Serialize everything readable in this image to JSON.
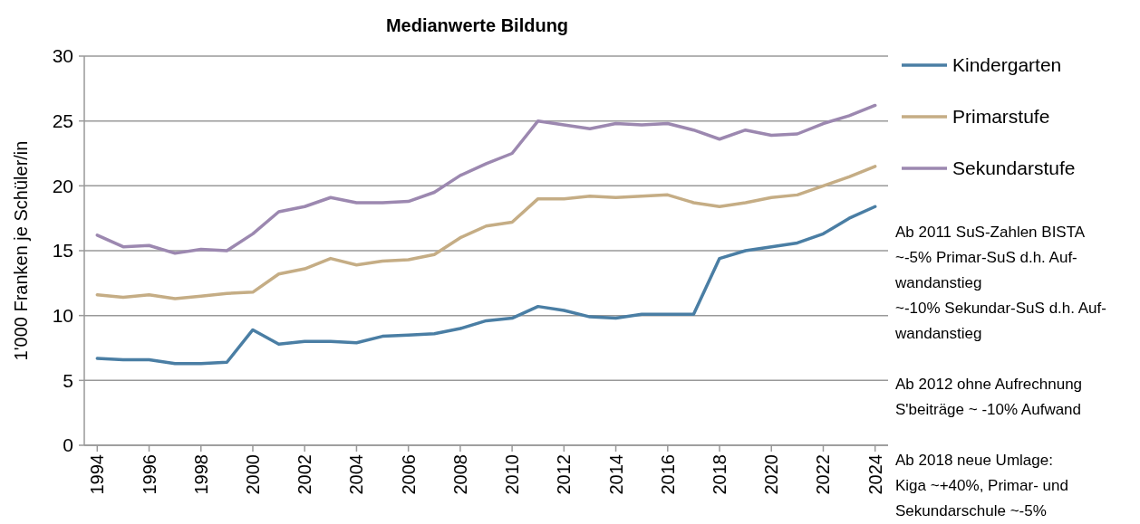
{
  "chart_data": {
    "type": "line",
    "title": "Medianwerte Bildung",
    "ylabel": "1'000 Franken je Schüler/in",
    "x": [
      1994,
      1995,
      1996,
      1997,
      1998,
      1999,
      2000,
      2001,
      2002,
      2003,
      2004,
      2005,
      2006,
      2007,
      2008,
      2009,
      2010,
      2011,
      2012,
      2013,
      2014,
      2015,
      2016,
      2017,
      2018,
      2019,
      2020,
      2021,
      2022,
      2023,
      2024
    ],
    "series": [
      {
        "name": "Kindergarten",
        "color": "#4a7ea4",
        "values": [
          6.7,
          6.6,
          6.6,
          6.3,
          6.3,
          6.4,
          8.9,
          7.8,
          8.0,
          8.0,
          7.9,
          8.4,
          8.5,
          8.6,
          9.0,
          9.6,
          9.8,
          10.7,
          10.4,
          9.9,
          9.8,
          10.1,
          10.1,
          10.1,
          14.4,
          15.0,
          15.3,
          15.6,
          16.3,
          17.5,
          18.4
        ]
      },
      {
        "name": "Primarstufe",
        "color": "#c5ad85",
        "values": [
          11.6,
          11.4,
          11.6,
          11.3,
          11.5,
          11.7,
          11.8,
          13.2,
          13.6,
          14.4,
          13.9,
          14.2,
          14.3,
          14.7,
          16.0,
          16.9,
          17.2,
          19.0,
          19.0,
          19.2,
          19.1,
          19.2,
          19.3,
          18.7,
          18.4,
          18.7,
          19.1,
          19.3,
          20.0,
          20.7,
          21.5
        ]
      },
      {
        "name": "Sekundarstufe",
        "color": "#9c88b0",
        "values": [
          16.2,
          15.3,
          15.4,
          14.8,
          15.1,
          15.0,
          16.3,
          18.0,
          18.4,
          19.1,
          18.7,
          18.7,
          18.8,
          19.5,
          20.8,
          21.7,
          22.5,
          25.0,
          24.7,
          24.4,
          24.8,
          24.7,
          24.8,
          24.3,
          23.6,
          24.3,
          23.9,
          24.0,
          24.8,
          25.4,
          26.2
        ]
      }
    ],
    "xlim": [
      1993.5,
      2024.5
    ],
    "xticks": [
      1994,
      1996,
      1998,
      2000,
      2002,
      2004,
      2006,
      2008,
      2010,
      2012,
      2014,
      2016,
      2018,
      2020,
      2022,
      2024
    ],
    "ylim": [
      0,
      30
    ],
    "yticks": [
      0,
      5,
      10,
      15,
      20,
      25,
      30
    ],
    "grid": "y",
    "legend": "right",
    "marker": "none",
    "line_style": "solid",
    "annotations": [
      "Ab 2011 SuS-Zahlen BISTA\n~-5% Primar-SuS d.h. Auf-\nwandanstieg\n~-10% Sekundar-SuS d.h. Auf-\nwandanstieg",
      "Ab 2012 ohne Aufrechnung\nS'beiträge ~ -10% Aufwand",
      "Ab 2018 neue Umlage:\nKiga ~+40%, Primar- und\nSekundarschule ~-5%"
    ]
  }
}
